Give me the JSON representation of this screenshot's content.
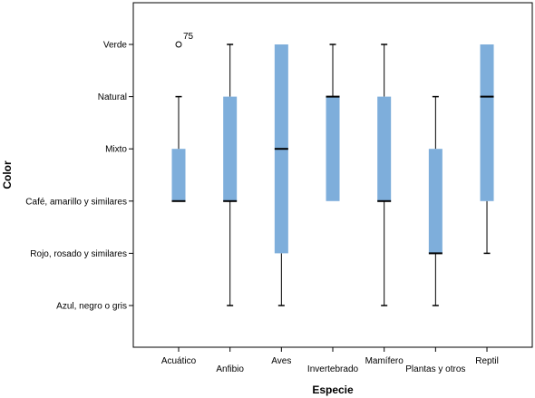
{
  "chart_data": {
    "type": "boxplot",
    "xlabel": "Especie",
    "ylabel": "Color",
    "y_categories": [
      "Azul, negro o gris",
      "Rojo, rosado y similares",
      "Café, amarillo y similares",
      "Mixto",
      "Natural",
      "Verde"
    ],
    "categories": [
      "Acuático",
      "Anfibio",
      "Aves",
      "Invertebrado",
      "Mamífero",
      "Plantas y otros",
      "Reptil"
    ],
    "box_color": "#7eaedb",
    "boxes": [
      {
        "category": "Acuático",
        "whisker_low": 3,
        "q1": 3,
        "median": 3,
        "q3": 4,
        "whisker_high": 5,
        "outliers": [
          {
            "value": 6,
            "label": "75"
          }
        ]
      },
      {
        "category": "Anfibio",
        "whisker_low": 1,
        "q1": 3,
        "median": 3,
        "q3": 5,
        "whisker_high": 6,
        "outliers": []
      },
      {
        "category": "Aves",
        "whisker_low": 1,
        "q1": 2,
        "median": 4,
        "q3": 6,
        "whisker_high": 6,
        "outliers": []
      },
      {
        "category": "Invertebrado",
        "whisker_low": 3,
        "q1": 3,
        "median": 5,
        "q3": 5,
        "whisker_high": 6,
        "outliers": []
      },
      {
        "category": "Mamífero",
        "whisker_low": 1,
        "q1": 3,
        "median": 3,
        "q3": 5,
        "whisker_high": 6,
        "outliers": []
      },
      {
        "category": "Plantas y otros",
        "whisker_low": 1,
        "q1": 2,
        "median": 2,
        "q3": 4,
        "whisker_high": 5,
        "outliers": []
      },
      {
        "category": "Reptil",
        "whisker_low": 2,
        "q1": 3,
        "median": 5,
        "q3": 6,
        "whisker_high": 6,
        "outliers": []
      }
    ]
  }
}
